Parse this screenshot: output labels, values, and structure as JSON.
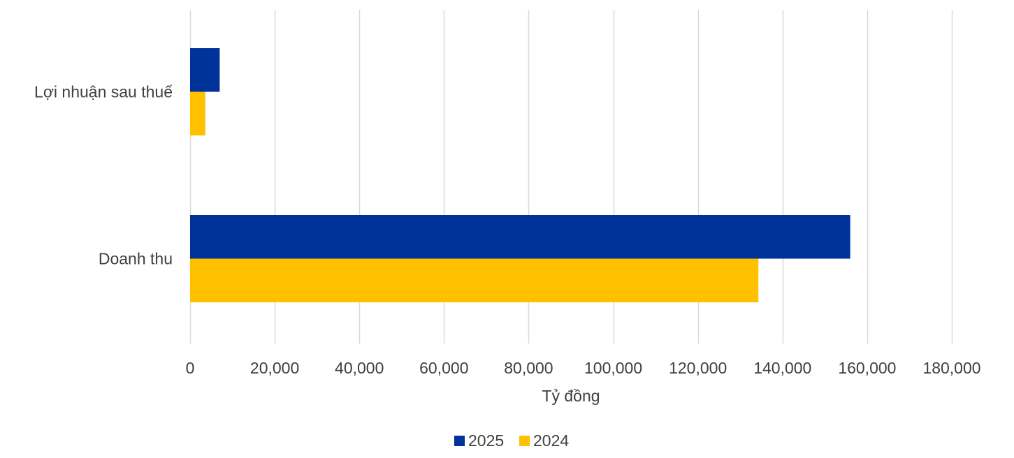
{
  "chart_data": {
    "type": "bar",
    "orientation": "horizontal",
    "categories": [
      "Lợi nhuận sau thuế",
      "Doanh thu"
    ],
    "series": [
      {
        "name": "2025",
        "color": "#003399",
        "values": [
          7000,
          156000
        ]
      },
      {
        "name": "2024",
        "color": "#FFC000",
        "values": [
          3600,
          134300
        ]
      }
    ],
    "xlabel": "Tỷ đồng",
    "xlim": [
      0,
      180000
    ],
    "xticks": [
      0,
      20000,
      40000,
      60000,
      80000,
      100000,
      120000,
      140000,
      160000,
      180000
    ],
    "xtick_labels": [
      "0",
      "20,000",
      "40,000",
      "60,000",
      "80,000",
      "100,000",
      "120,000",
      "140,000",
      "160,000",
      "180,000"
    ],
    "grid": "vertical",
    "grid_color": "#D9D9D9",
    "legend_position": "bottom"
  }
}
